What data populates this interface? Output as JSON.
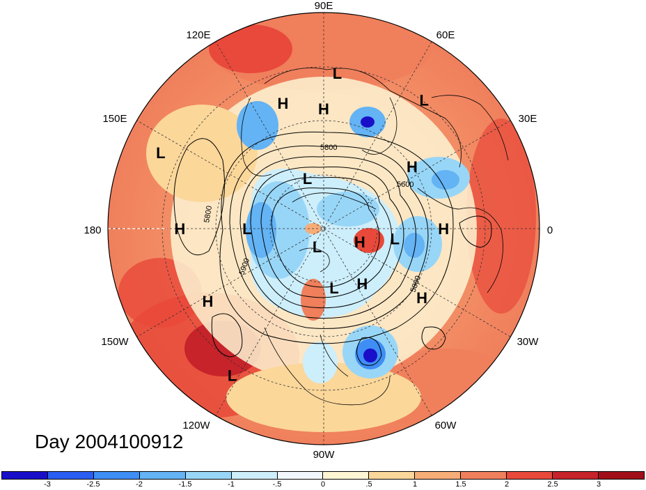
{
  "title": "Day 2004100912",
  "longitude_labels": [
    "90E",
    "60E",
    "30E",
    "0",
    "30W",
    "60W",
    "90W",
    "120W",
    "150W",
    "180",
    "150E",
    "120E"
  ],
  "contour_labels": [
    "5600",
    "5800",
    "5900",
    "5800",
    "5800"
  ],
  "pressure_centers": [
    {
      "name": "H",
      "lon": 108,
      "lat": 35
    },
    {
      "name": "L",
      "lon": 85,
      "lat": 25
    },
    {
      "name": "H",
      "lon": 90,
      "lat": 40
    },
    {
      "name": "L",
      "lon": 52,
      "lat": 22
    },
    {
      "name": "H",
      "lon": 35,
      "lat": 45
    },
    {
      "name": "L",
      "lon": 155,
      "lat": 15
    },
    {
      "name": "H",
      "lon": 180,
      "lat": 30
    },
    {
      "name": "L",
      "lon": 108,
      "lat": 68
    },
    {
      "name": "L",
      "lon": 180,
      "lat": 58
    },
    {
      "name": "H",
      "lon": 0,
      "lat": 40
    },
    {
      "name": "H",
      "lon": -20,
      "lat": 74
    },
    {
      "name": "L",
      "lon": -8,
      "lat": 60
    },
    {
      "name": "L",
      "lon": -110,
      "lat": 82
    },
    {
      "name": "L",
      "lon": -80,
      "lat": 65
    },
    {
      "name": "H",
      "lon": -55,
      "lat": 62
    },
    {
      "name": "H",
      "lon": -35,
      "lat": 40
    },
    {
      "name": "H",
      "lon": -148,
      "lat": 33
    },
    {
      "name": "L",
      "lon": -122,
      "lat": 18
    }
  ],
  "colors": {
    "background": "#ffffff",
    "bands": [
      "#1a0fc9",
      "#2a5ef2",
      "#3f8ef5",
      "#63b3f5",
      "#98d6f7",
      "#cdeefb",
      "#f2f8fd",
      "#fdf5d4",
      "#fbd79a",
      "#f7ad78",
      "#f07f5c",
      "#e8493a",
      "#c6232a",
      "#a00e1a"
    ],
    "coast": "#000000",
    "grid": "#333333"
  },
  "colorbar": {
    "ticks": [
      "-3",
      "-2.5",
      "-2",
      "-1.5",
      "-1",
      "-.5",
      "0",
      ".5",
      "1",
      "1.5",
      "2",
      "2.5",
      "3"
    ]
  }
}
